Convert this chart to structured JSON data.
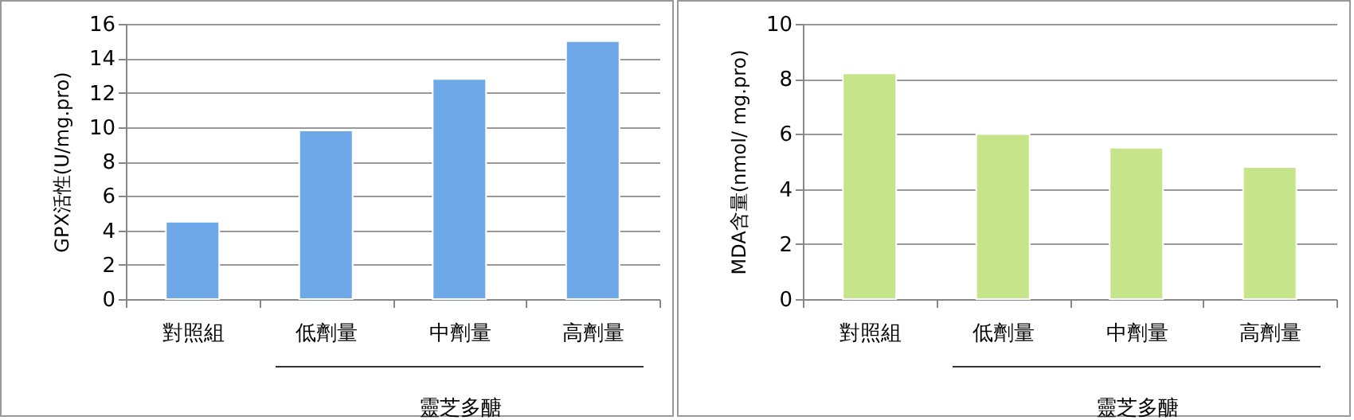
{
  "chart_data": [
    {
      "type": "bar",
      "ylabel": "GPX活性(U/mg.pro)",
      "categories": [
        "對照組",
        "低劑量",
        "中劑量",
        "高劑量"
      ],
      "series": [
        {
          "color": "#6fa8e8",
          "values": [
            4.5,
            9.8,
            12.8,
            15.0
          ]
        }
      ],
      "ylim": [
        0,
        16
      ],
      "yticks": [
        0,
        2,
        4,
        6,
        8,
        10,
        12,
        14,
        16
      ],
      "grid": "y",
      "annotations": [
        "靈芝多醣"
      ]
    },
    {
      "type": "bar",
      "ylabel": "MDA含量(nmol/ mg.pro)",
      "categories": [
        "對照組",
        "低劑量",
        "中劑量",
        "高劑量"
      ],
      "series": [
        {
          "color": "#c6e48a",
          "values": [
            8.2,
            6.0,
            5.5,
            4.8
          ]
        }
      ],
      "ylim": [
        0,
        10
      ],
      "yticks": [
        0,
        2,
        4,
        6,
        8,
        10
      ],
      "grid": "y",
      "annotations": [
        "靈芝多醣"
      ]
    }
  ]
}
